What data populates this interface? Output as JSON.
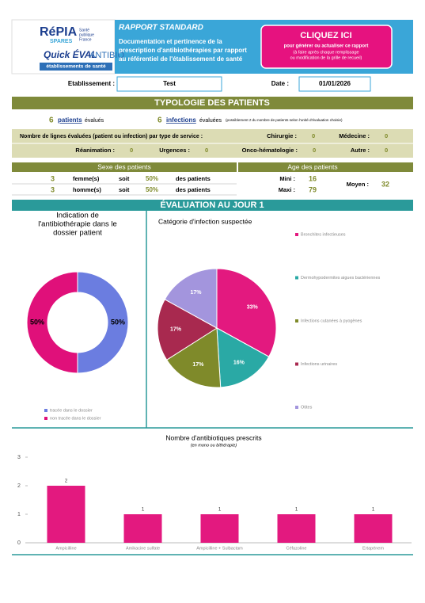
{
  "logo": {
    "name": "RéPIA",
    "sub": "SPARES",
    "partner": [
      "Santé",
      "publique",
      "France"
    ],
    "product1": "Quick ÉVAL",
    "product2": "ANTIBIO",
    "tagline": "établissements de santé"
  },
  "header": {
    "title": "RAPPORT STANDARD",
    "description": [
      "Documentation et pertinence de la",
      "prescription d'antibiothérapies par rapport",
      "au référentiel de l'établissement de santé"
    ],
    "button": {
      "label": "CLIQUEZ ICI",
      "line1": "pour générer ou actualiser ce rapport",
      "line2": "(à faire après chaque remplissage",
      "line3": "ou modification de la grille de recueil)"
    }
  },
  "establishment": {
    "label": "Etablissement :",
    "value": "Test"
  },
  "date": {
    "label": "Date :",
    "value": "01/01/2026"
  },
  "typology": {
    "title": "TYPOLOGIE DES PATIENTS",
    "patients": {
      "count": 6,
      "label": "patients",
      "suffix": "évalués"
    },
    "infections": {
      "count": 6,
      "label": "infections",
      "suffix": "évaluées",
      "note": "(possiblement ≠ du nombre de patients selon l'unité d'évaluation choisie)"
    },
    "services": {
      "label": "Nombre de lignes évaluées (patient ou infection) par type de service :",
      "items": [
        {
          "name": "Chirurgie :",
          "value": 0
        },
        {
          "name": "Médecine :",
          "value": 0
        },
        {
          "name": "Réanimation :",
          "value": 0
        },
        {
          "name": "Urgences :",
          "value": 0
        },
        {
          "name": "Onco-hématologie :",
          "value": 0
        },
        {
          "name": "Autre :",
          "value": 0
        }
      ]
    }
  },
  "sex": {
    "title": "Sexe des patients",
    "rows": [
      {
        "count": 3,
        "label": "femme(s)",
        "link": "soit",
        "percent": "50%",
        "suffix": "des patients"
      },
      {
        "count": 3,
        "label": "homme(s)",
        "link": "soit",
        "percent": "50%",
        "suffix": "des patients"
      }
    ]
  },
  "age": {
    "title": "Age des patients",
    "min": {
      "label": "Mini :",
      "value": 16
    },
    "max": {
      "label": "Maxi :",
      "value": 79
    },
    "mean": {
      "label": "Moyen :",
      "value": 32
    }
  },
  "evaluation": {
    "title": "ÉVALUATION AU JOUR 1"
  },
  "chart_data": [
    {
      "type": "donut",
      "title": [
        "Indication de",
        "l'antibiothérapie dans le",
        "dossier patient"
      ],
      "categories": [
        "tracée dans le dossier",
        "non tracée dans le dossier"
      ],
      "values": [
        50,
        50
      ],
      "value_labels": [
        "50%",
        "50%"
      ],
      "colors": [
        "#6b7de0",
        "#e0107a"
      ]
    },
    {
      "type": "pie",
      "title": "Catégorie d'infection suspectée",
      "categories": [
        "Bronchites infectieuses",
        "Dermohypodermites aigues bactériennes",
        "Infections cutanées à pyogènes",
        "Infections urinaires",
        "Otites"
      ],
      "values": [
        33,
        16,
        17,
        17,
        17
      ],
      "value_labels": [
        "33%",
        "16%",
        "17%",
        "17%",
        "17%"
      ],
      "colors": [
        "#e3197f",
        "#2aa9a5",
        "#7f8a2a",
        "#a8294f",
        "#a395dd"
      ]
    },
    {
      "type": "bar",
      "title": "Nombre d'antibiotiques prescrits",
      "subtitle": "(en mono ou bithérapie)",
      "categories": [
        "Ampicilline",
        "Amikacine sulfate",
        "Ampicilline + Sulbactam",
        "Céfazoline",
        "Ertapénem"
      ],
      "values": [
        2,
        1,
        1,
        1,
        1
      ],
      "color": "#e3197f",
      "ylim": [
        0,
        3
      ],
      "yticks": [
        0,
        1,
        2,
        3
      ]
    }
  ]
}
